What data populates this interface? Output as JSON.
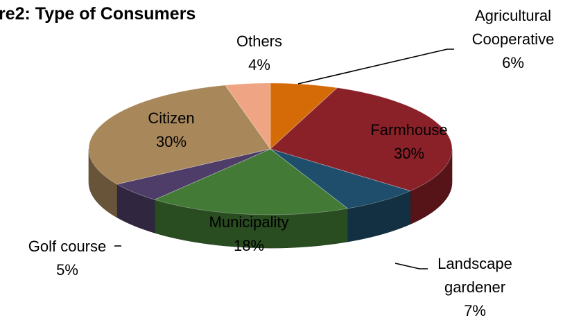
{
  "chart_data": {
    "type": "pie",
    "title": "re2: Type of Consumers",
    "style": "3d-exploded-none",
    "slices": [
      {
        "label_lines": [
          "Agricultural",
          "Cooperative"
        ],
        "percent_label": "6%",
        "value": 6,
        "color": "#D56B06"
      },
      {
        "label_lines": [
          "Farmhouse"
        ],
        "percent_label": "30%",
        "value": 30,
        "color": "#8A2129"
      },
      {
        "label_lines": [
          "Landscape",
          "gardener"
        ],
        "percent_label": "7%",
        "value": 7,
        "color": "#1E4E6B"
      },
      {
        "label_lines": [
          "Municipality"
        ],
        "percent_label": "18%",
        "value": 18,
        "color": "#427A36"
      },
      {
        "label_lines": [
          "Golf course"
        ],
        "percent_label": "5%",
        "value": 5,
        "color": "#4E3D68"
      },
      {
        "label_lines": [
          "Citizen"
        ],
        "percent_label": "30%",
        "value": 30,
        "color": "#A8875A"
      },
      {
        "label_lines": [
          "Others"
        ],
        "percent_label": "4%",
        "value": 4,
        "color": "#EFA583"
      }
    ]
  }
}
